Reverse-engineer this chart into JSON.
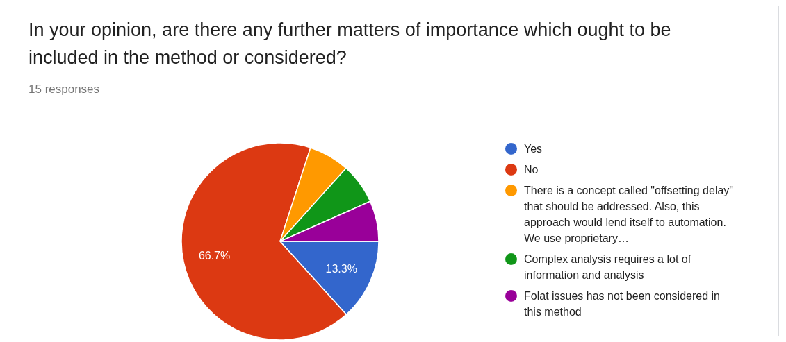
{
  "chart_data": {
    "type": "pie",
    "title": "In your opinion, are there any further matters of importance which ought to be included in the method or considered?",
    "subtitle": "15 responses",
    "categories": [
      "Yes",
      "No",
      "There is a concept called \"offsetting delay\" that should be addressed. Also, this approach would lend itself to automation. We use proprietary…",
      "Complex analysis requires a lot of information and analysis",
      "Folat issues has not been considered in this method"
    ],
    "values": [
      13.3,
      66.7,
      6.67,
      6.67,
      6.67
    ],
    "colors": [
      "#3366cc",
      "#dc3912",
      "#ff9900",
      "#109618",
      "#990099"
    ],
    "value_labels": [
      "13.3%",
      "66.7%",
      null,
      null,
      null
    ],
    "legend": "right"
  }
}
